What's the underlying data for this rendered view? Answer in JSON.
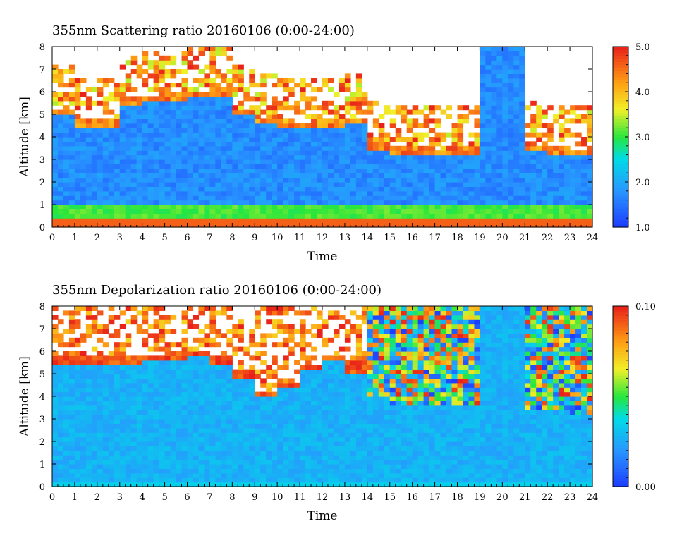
{
  "chart_data": [
    {
      "type": "heatmap",
      "title": "355nm Scattering ratio  20160106 (0:00-24:00)",
      "xlabel": "Time",
      "ylabel": "Altitude [km]",
      "xlim": [
        0,
        24
      ],
      "ylim": [
        0,
        8
      ],
      "x_ticks": [
        "0",
        "1",
        "2",
        "3",
        "4",
        "5",
        "6",
        "7",
        "8",
        "9",
        "10",
        "11",
        "12",
        "13",
        "14",
        "15",
        "16",
        "17",
        "18",
        "19",
        "20",
        "21",
        "22",
        "23",
        "24"
      ],
      "y_ticks": [
        "0",
        "1",
        "2",
        "3",
        "4",
        "5",
        "6",
        "7",
        "8"
      ],
      "colorbar": {
        "range": [
          1.0,
          5.0
        ],
        "ticks": [
          "1.0",
          "2.0",
          "3.0",
          "4.0",
          "5.0"
        ],
        "colormap": "rainbow"
      },
      "cloud_top_km_by_hour": [
        5.0,
        4.5,
        4.5,
        5.5,
        5.6,
        5.7,
        5.8,
        5.9,
        5.0,
        4.6,
        4.4,
        4.4,
        4.5,
        4.6,
        3.5,
        3.3,
        3.3,
        3.2,
        3.3,
        8.0,
        8.0,
        3.4,
        3.3,
        3.2
      ],
      "cloud_base_km_by_hour": [
        1.0,
        1.0,
        1.0,
        1.0,
        1.0,
        1.0,
        1.0,
        1.0,
        1.0,
        1.0,
        1.0,
        1.0,
        1.0,
        1.2,
        1.2,
        1.2,
        1.2,
        1.2,
        1.2,
        1.2,
        1.2,
        1.2,
        1.2,
        1.3
      ],
      "colors": {
        "low": "#1c3cff",
        "high": "#e8201a"
      }
    },
    {
      "type": "heatmap",
      "title": "355nm Depolarization ratio  20160106 (0:00-24:00)",
      "xlabel": "Time",
      "ylabel": "Altitude [km]",
      "xlim": [
        0,
        24
      ],
      "ylim": [
        0,
        8
      ],
      "x_ticks": [
        "0",
        "1",
        "2",
        "3",
        "4",
        "5",
        "6",
        "7",
        "8",
        "9",
        "10",
        "11",
        "12",
        "13",
        "14",
        "15",
        "16",
        "17",
        "18",
        "19",
        "20",
        "21",
        "22",
        "23",
        "24"
      ],
      "y_ticks": [
        "0",
        "1",
        "2",
        "3",
        "4",
        "5",
        "6",
        "7",
        "8"
      ],
      "colorbar": {
        "range": [
          0.0,
          0.1
        ],
        "ticks": [
          "0.00",
          "0.10"
        ],
        "colormap": "rainbow"
      },
      "cloud_top_km_by_hour": [
        5.5,
        5.5,
        5.5,
        5.4,
        5.6,
        5.7,
        5.8,
        5.5,
        4.9,
        4.0,
        4.4,
        5.2,
        5.6,
        5.1,
        4.0,
        3.7,
        3.6,
        3.6,
        3.6,
        8.0,
        8.0,
        3.4,
        3.4,
        3.3
      ],
      "noisy_hours": [
        14,
        15,
        16,
        17,
        18,
        21,
        22,
        23
      ],
      "colors": {
        "low": "#1c3cff",
        "high": "#e8201a"
      }
    }
  ]
}
